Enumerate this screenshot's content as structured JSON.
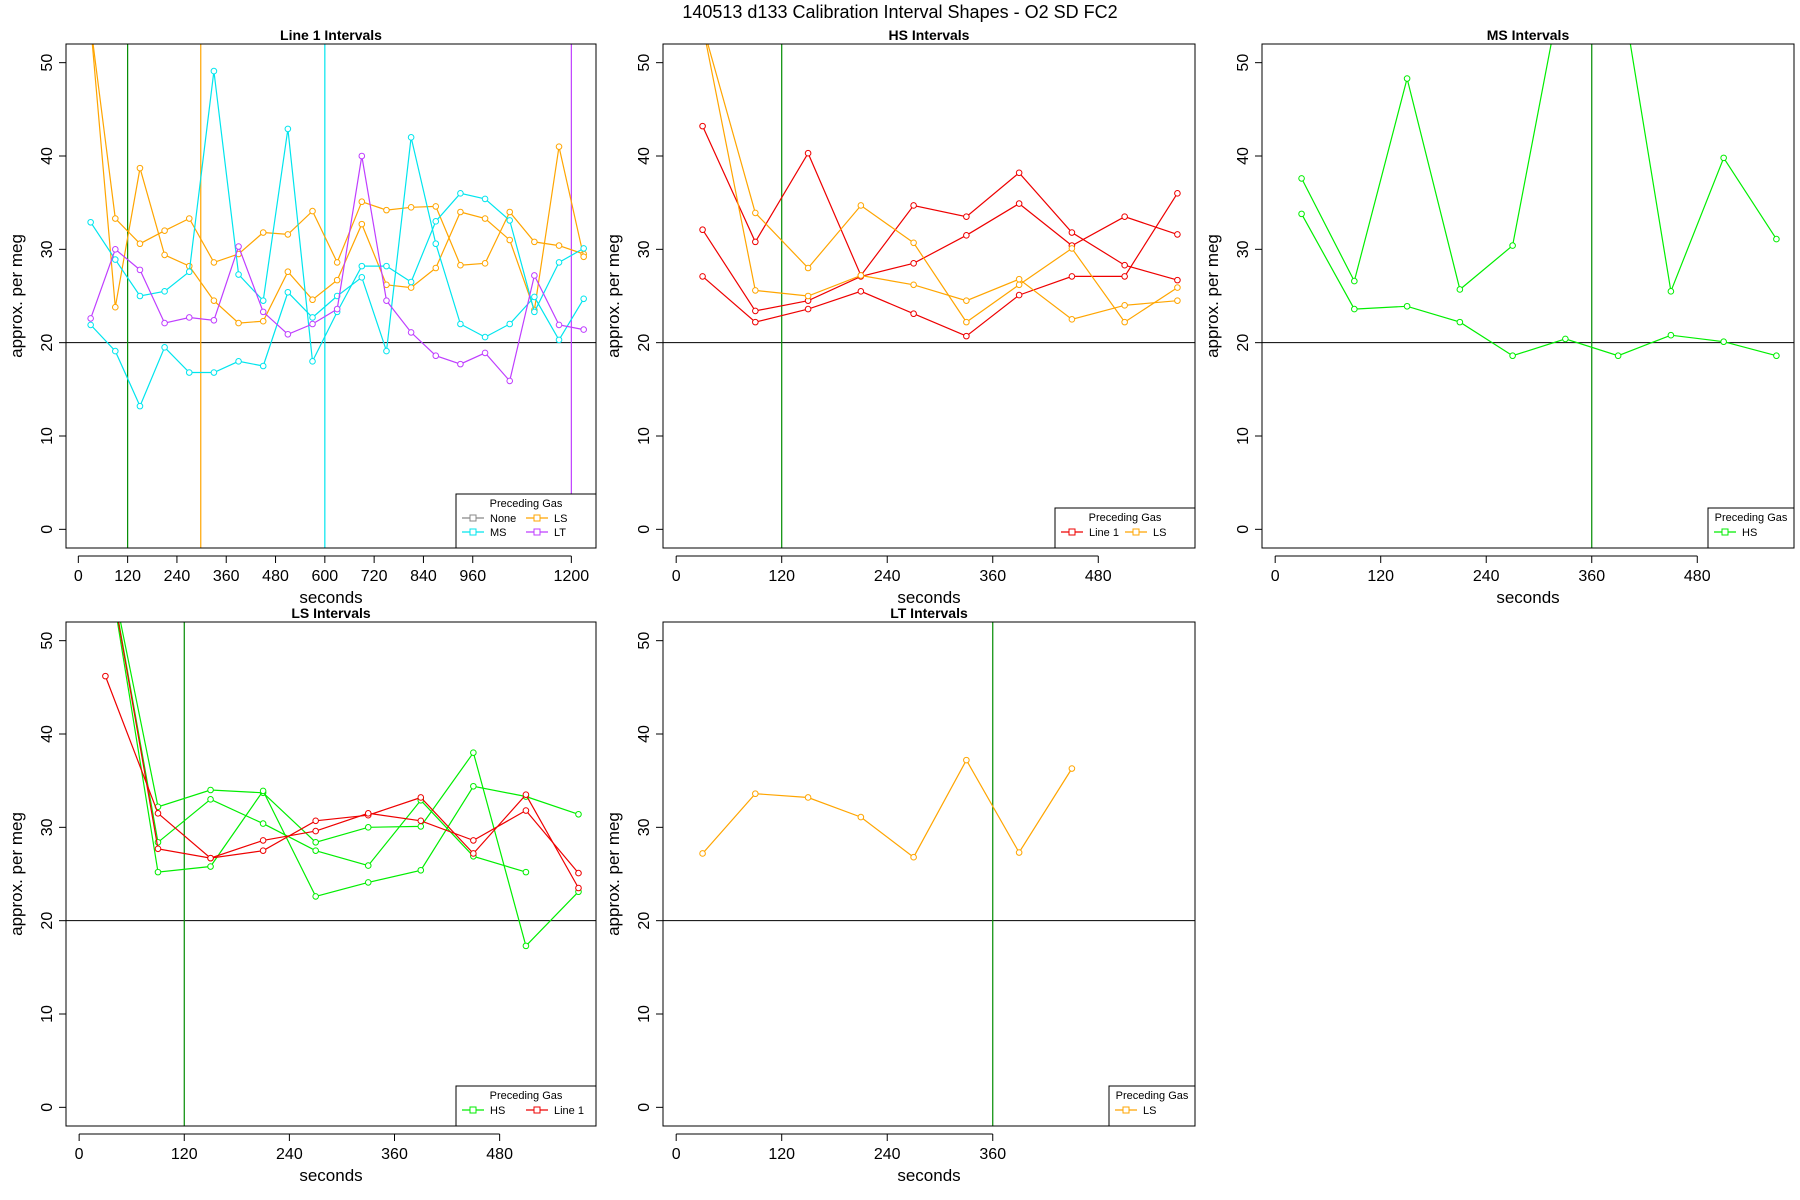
{
  "page_title": "140513   d133   Calibration Interval Shapes - O2 SD FC2",
  "colors": {
    "None": "#888888",
    "LS": "#FFA500",
    "MS": "#00E5EE",
    "LT": "#BF3EFF",
    "HS": "#00EE00",
    "Line 1": "#EE0000",
    "ref_green": "#008B00",
    "ref_line": "#000000"
  },
  "chart_data": [
    {
      "type": "line",
      "title": "Line 1 Intervals",
      "xlabel": "seconds",
      "ylabel": "approx. per meg",
      "xlim": [
        -30,
        1260
      ],
      "ylim": [
        -2,
        52
      ],
      "x_ticks": [
        0,
        120,
        240,
        360,
        480,
        600,
        720,
        840,
        960,
        1200
      ],
      "y_ticks": [
        0,
        10,
        20,
        30,
        40,
        50
      ],
      "hline": 20,
      "vlines": [
        {
          "x": 120,
          "color_key": "ref_green"
        },
        {
          "x": 298,
          "color_key": "LS"
        },
        {
          "x": 600,
          "color_key": "MS"
        },
        {
          "x": 1200,
          "color_key": "LT"
        }
      ],
      "legend": {
        "title": "Preceding Gas",
        "entries": [
          "None",
          "LS",
          "MS",
          "LT"
        ],
        "columns": 2
      },
      "series": [
        {
          "name": "LS",
          "x": [
            30,
            90,
            150,
            210,
            270,
            330,
            390,
            450,
            510,
            570,
            630,
            690,
            750,
            810,
            870,
            930,
            990,
            1050,
            1110,
            1170,
            1230
          ],
          "y": [
            54,
            33.3,
            30.6,
            32.0,
            33.3,
            28.6,
            29.5,
            31.8,
            31.6,
            34.1,
            28.6,
            35.1,
            34.2,
            34.5,
            34.6,
            28.3,
            28.5,
            34.0,
            30.8,
            30.4,
            29.5
          ]
        },
        {
          "name": "LS",
          "x": [
            30,
            90,
            150,
            210,
            270,
            330,
            390,
            450,
            510,
            570,
            630,
            690,
            750,
            810,
            870,
            930,
            990,
            1050,
            1110,
            1170,
            1230
          ],
          "y": [
            54,
            23.8,
            38.7,
            29.4,
            28.2,
            24.5,
            22.1,
            22.3,
            27.6,
            24.6,
            26.7,
            32.7,
            26.2,
            25.9,
            28.0,
            34.0,
            33.3,
            31.0,
            23.5,
            41.0,
            29.2
          ]
        },
        {
          "name": "MS",
          "x": [
            30,
            90,
            150,
            210,
            270,
            330,
            390,
            450,
            510,
            570,
            630,
            690,
            750,
            810,
            870,
            930,
            990,
            1050,
            1110,
            1170,
            1230
          ],
          "y": [
            32.9,
            28.9,
            25.0,
            25.5,
            27.6,
            49.1,
            27.3,
            24.5,
            42.9,
            18.0,
            23.3,
            28.2,
            28.2,
            26.5,
            33.0,
            36.0,
            35.4,
            33.1,
            23.3,
            28.6,
            30.1
          ]
        },
        {
          "name": "MS",
          "x": [
            30,
            90,
            150,
            210,
            270,
            330,
            390,
            450,
            510,
            570,
            630,
            690,
            750,
            810,
            870,
            930,
            990,
            1050,
            1110,
            1170,
            1230
          ],
          "y": [
            21.9,
            19.1,
            13.2,
            19.5,
            16.8,
            16.8,
            18.0,
            17.5,
            25.4,
            22.7,
            25.0,
            27.0,
            19.1,
            42.0,
            30.6,
            22.0,
            20.6,
            22.0,
            24.9,
            20.3,
            24.7
          ]
        },
        {
          "name": "LT",
          "x": [
            30,
            90,
            150,
            210,
            270,
            330,
            390,
            450,
            510,
            570,
            630,
            690,
            750,
            810,
            870,
            930,
            990,
            1050,
            1110,
            1170,
            1230
          ],
          "y": [
            22.6,
            30.0,
            27.8,
            22.1,
            22.7,
            22.4,
            30.3,
            23.3,
            20.9,
            22.0,
            23.6,
            40.0,
            24.5,
            21.1,
            18.6,
            17.7,
            18.9,
            15.9,
            27.2,
            21.9,
            21.4
          ]
        }
      ]
    },
    {
      "type": "line",
      "title": "HS Intervals",
      "xlabel": "seconds",
      "ylabel": "approx. per meg",
      "xlim": [
        -15,
        590
      ],
      "ylim": [
        -2,
        52
      ],
      "x_ticks": [
        0,
        120,
        240,
        360,
        480
      ],
      "y_ticks": [
        0,
        10,
        20,
        30,
        40,
        50
      ],
      "hline": 20,
      "vlines": [
        {
          "x": 120,
          "color_key": "ref_green"
        }
      ],
      "legend": {
        "title": "Preceding Gas",
        "entries": [
          "Line 1",
          "LS"
        ],
        "columns": 2
      },
      "series": [
        {
          "name": "Line 1",
          "x": [
            30,
            90,
            150,
            210,
            270,
            330,
            390,
            450,
            510,
            570
          ],
          "y": [
            43.2,
            30.8,
            40.3,
            27.2,
            34.7,
            33.5,
            38.2,
            31.8,
            28.3,
            26.7
          ]
        },
        {
          "name": "Line 1",
          "x": [
            30,
            90,
            150,
            210,
            270,
            330,
            390,
            450,
            510,
            570
          ],
          "y": [
            32.1,
            23.4,
            24.5,
            27.1,
            28.5,
            31.5,
            34.9,
            30.4,
            33.5,
            31.6
          ]
        },
        {
          "name": "Line 1",
          "x": [
            30,
            90,
            150,
            210,
            270,
            330,
            390,
            450,
            510,
            570
          ],
          "y": [
            27.1,
            22.2,
            23.6,
            25.5,
            23.1,
            20.7,
            25.1,
            27.1,
            27.1,
            36.0
          ]
        },
        {
          "name": "LS",
          "x": [
            30,
            90,
            150,
            210,
            270,
            330,
            390,
            450,
            510,
            570
          ],
          "y": [
            54,
            33.9,
            28.0,
            34.7,
            30.7,
            22.2,
            26.2,
            30.1,
            22.2,
            25.9
          ]
        },
        {
          "name": "LS",
          "x": [
            30,
            90,
            150,
            210,
            270,
            330,
            390,
            450,
            510,
            570
          ],
          "y": [
            54,
            25.6,
            25.0,
            27.2,
            26.2,
            24.5,
            26.8,
            22.5,
            24.0,
            24.5
          ]
        }
      ]
    },
    {
      "type": "line",
      "title": "MS Intervals",
      "xlabel": "seconds",
      "ylabel": "approx. per meg",
      "xlim": [
        -15,
        590
      ],
      "ylim": [
        -2,
        52
      ],
      "x_ticks": [
        0,
        120,
        240,
        360,
        480
      ],
      "y_ticks": [
        0,
        10,
        20,
        30,
        40,
        50
      ],
      "hline": 20,
      "vlines": [
        {
          "x": 360,
          "color_key": "ref_green"
        }
      ],
      "legend": {
        "title": "Preceding Gas",
        "entries": [
          "HS"
        ],
        "columns": 1
      },
      "series": [
        {
          "name": "HS",
          "x": [
            30,
            90,
            150,
            210,
            270,
            330,
            390,
            450,
            510,
            570
          ],
          "y": [
            37.6,
            26.6,
            48.3,
            25.7,
            30.4,
            60.0,
            60.0,
            25.5,
            39.8,
            31.1
          ]
        },
        {
          "name": "HS",
          "x": [
            30,
            90,
            150,
            210,
            270,
            330,
            390,
            450,
            510,
            570
          ],
          "y": [
            33.8,
            23.6,
            23.9,
            22.2,
            18.6,
            20.4,
            18.6,
            20.8,
            20.1,
            18.6
          ]
        }
      ]
    },
    {
      "type": "line",
      "title": "LS Intervals",
      "xlabel": "seconds",
      "ylabel": "approx. per meg",
      "xlim": [
        -15,
        590
      ],
      "ylim": [
        -2,
        52
      ],
      "x_ticks": [
        0,
        120,
        240,
        360,
        480
      ],
      "y_ticks": [
        0,
        10,
        20,
        30,
        40,
        50
      ],
      "hline": 20,
      "vlines": [
        {
          "x": 120,
          "color_key": "ref_green"
        }
      ],
      "legend": {
        "title": "Preceding Gas",
        "entries": [
          "HS",
          "Line 1"
        ],
        "columns": 2
      },
      "series": [
        {
          "name": "HS",
          "x": [
            30,
            90,
            150,
            210,
            270,
            330,
            390,
            450,
            510,
            570
          ],
          "y": [
            60,
            32.2,
            34.0,
            33.7,
            28.4,
            30.0,
            30.1,
            38.0,
            17.3,
            23.1
          ]
        },
        {
          "name": "HS",
          "x": [
            30,
            90,
            150,
            210,
            270,
            330,
            390,
            450,
            510,
            570
          ],
          "y": [
            60,
            25.2,
            25.8,
            33.9,
            22.6,
            24.1,
            25.4,
            34.4,
            33.3,
            31.4
          ]
        },
        {
          "name": "HS",
          "x": [
            30,
            90,
            150,
            210,
            270,
            330,
            390,
            450,
            510,
            570
          ],
          "y": [
            60,
            28.4,
            33.0,
            30.4,
            27.5,
            25.9,
            32.9,
            26.9,
            25.2,
            null
          ]
        },
        {
          "name": "Line 1",
          "x": [
            30,
            90,
            150,
            210,
            270,
            330,
            390,
            450,
            510,
            570
          ],
          "y": [
            46.2,
            31.5,
            26.7,
            27.5,
            30.7,
            31.3,
            33.2,
            27.2,
            33.5,
            23.5
          ]
        },
        {
          "name": "Line 1",
          "x": [
            30,
            90,
            150,
            210,
            270,
            330,
            390,
            450,
            510,
            570
          ],
          "y": [
            60,
            27.7,
            26.7,
            28.6,
            29.6,
            31.5,
            30.7,
            28.6,
            31.8,
            25.1
          ]
        }
      ]
    },
    {
      "type": "line",
      "title": "LT Intervals",
      "xlabel": "seconds",
      "ylabel": "approx. per meg",
      "xlim": [
        -15,
        590
      ],
      "ylim": [
        -2,
        52
      ],
      "x_ticks": [
        0,
        120,
        240,
        360
      ],
      "y_ticks": [
        0,
        10,
        20,
        30,
        40,
        50
      ],
      "hline": 20,
      "vlines": [
        {
          "x": 360,
          "color_key": "ref_green"
        }
      ],
      "legend": {
        "title": "Preceding Gas",
        "entries": [
          "LS"
        ],
        "columns": 1
      },
      "series": [
        {
          "name": "LS",
          "x": [
            30,
            90,
            150,
            210,
            270,
            330,
            390,
            450
          ],
          "y": [
            27.2,
            33.6,
            33.2,
            31.1,
            26.8,
            37.2,
            27.3,
            36.3
          ]
        }
      ]
    }
  ]
}
